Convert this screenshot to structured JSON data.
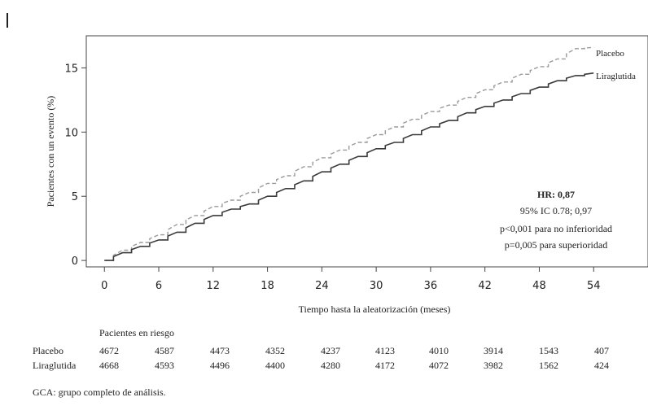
{
  "chart_data": {
    "type": "line",
    "ylabel": "Pacientes con un evento (%)",
    "xlabel": "Tiempo hasta la aleatorización (meses)",
    "xlim": [
      -2,
      60
    ],
    "ylim": [
      -0.5,
      17.5
    ],
    "x_ticks": [
      0,
      6,
      12,
      18,
      24,
      30,
      36,
      42,
      48,
      54
    ],
    "y_ticks": [
      0,
      5,
      10,
      15
    ],
    "series": [
      {
        "name": "Placebo",
        "style": "dashed",
        "color": "#9a9a9a",
        "x": [
          0,
          2,
          4,
          6,
          8,
          10,
          12,
          14,
          16,
          18,
          20,
          22,
          24,
          26,
          28,
          30,
          32,
          34,
          36,
          38,
          40,
          42,
          44,
          46,
          48,
          50,
          52,
          54
        ],
        "y": [
          0,
          0.8,
          1.4,
          2.0,
          2.8,
          3.5,
          4.2,
          4.7,
          5.3,
          6.0,
          6.6,
          7.3,
          8.0,
          8.6,
          9.2,
          9.8,
          10.4,
          11.0,
          11.6,
          12.1,
          12.7,
          13.3,
          13.9,
          14.5,
          15.1,
          15.7,
          16.5,
          16.6
        ]
      },
      {
        "name": "Liraglutida",
        "style": "solid",
        "color": "#3a3a3a",
        "x": [
          0,
          2,
          4,
          6,
          8,
          10,
          12,
          14,
          16,
          18,
          20,
          22,
          24,
          26,
          28,
          30,
          32,
          34,
          36,
          38,
          40,
          42,
          44,
          46,
          48,
          50,
          52,
          54
        ],
        "y": [
          0,
          0.6,
          1.1,
          1.6,
          2.2,
          2.9,
          3.5,
          4.0,
          4.4,
          5.0,
          5.6,
          6.2,
          6.9,
          7.5,
          8.1,
          8.7,
          9.2,
          9.8,
          10.4,
          10.9,
          11.5,
          12.0,
          12.5,
          13.0,
          13.5,
          14.0,
          14.4,
          14.6
        ]
      }
    ],
    "annotation": {
      "hr": "HR: 0,87",
      "ci": "95% IC 0.78; 0,97",
      "p1": "p<0,001 para no inferioridad",
      "p2": "p=0,005 para superioridad"
    }
  },
  "risk_table": {
    "title": "Pacientes en riesgo",
    "rows": [
      {
        "label": "Placebo",
        "values": [
          "4672",
          "4587",
          "4473",
          "4352",
          "4237",
          "4123",
          "4010",
          "3914",
          "1543",
          "407"
        ]
      },
      {
        "label": "Liraglutida",
        "values": [
          "4668",
          "4593",
          "4496",
          "4400",
          "4280",
          "4172",
          "4072",
          "3982",
          "1562",
          "424"
        ]
      }
    ]
  },
  "footnote": "GCA: grupo completo de análisis."
}
